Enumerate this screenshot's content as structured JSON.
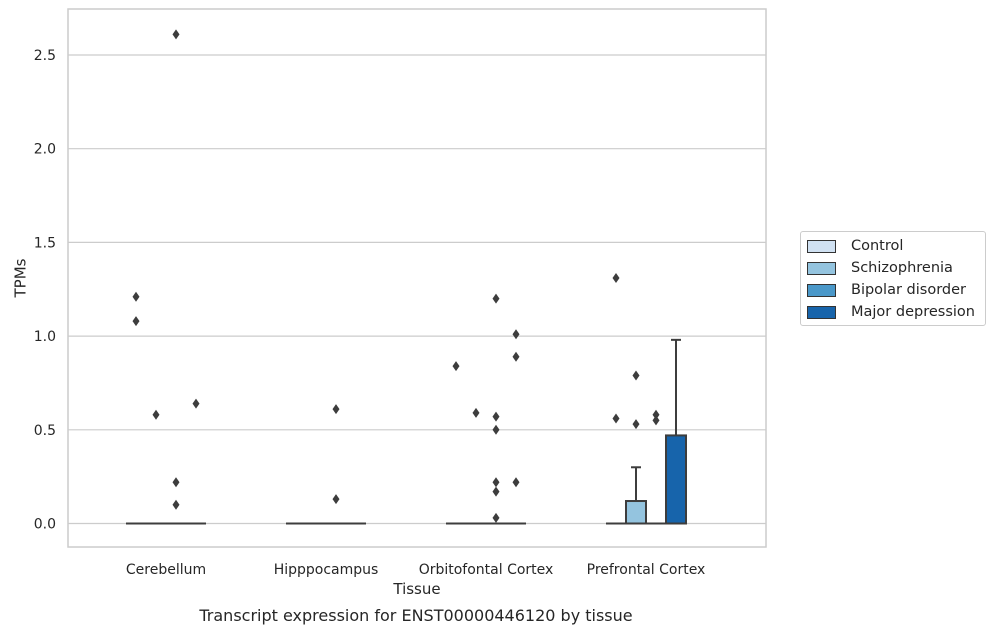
{
  "chart_data": {
    "type": "box",
    "xlabel": "Tissue",
    "ylabel": "TPMs",
    "ylim": [
      -0.12,
      2.7
    ],
    "yticks": [
      "0.0",
      "0.5",
      "1.0",
      "1.5",
      "2.0",
      "2.5"
    ],
    "ytick_values": [
      0.0,
      0.5,
      1.0,
      1.5,
      2.0,
      2.5
    ],
    "categories": [
      "Cerebellum",
      "Hipppocampus",
      "Orbitofontal Cortex",
      "Prefrontal Cortex"
    ],
    "series": [
      {
        "name": "Control",
        "color": "#d0e1f2",
        "boxes": [
          {
            "q1": 0,
            "median": 0,
            "q3": 0,
            "whislo": 0,
            "whishi": 0,
            "fliers": [
              1.21,
              1.08
            ]
          },
          {
            "q1": 0,
            "median": 0,
            "q3": 0,
            "whislo": 0,
            "whishi": 0,
            "fliers": []
          },
          {
            "q1": 0,
            "median": 0,
            "q3": 0,
            "whislo": 0,
            "whishi": 0,
            "fliers": [
              0.84
            ]
          },
          {
            "q1": 0,
            "median": 0,
            "q3": 0,
            "whislo": 0,
            "whishi": 0,
            "fliers": [
              1.31,
              0.56
            ]
          }
        ]
      },
      {
        "name": "Schizophrenia",
        "color": "#94c4df",
        "boxes": [
          {
            "q1": 0,
            "median": 0,
            "q3": 0,
            "whislo": 0,
            "whishi": 0,
            "fliers": [
              0.58
            ]
          },
          {
            "q1": 0,
            "median": 0,
            "q3": 0,
            "whislo": 0,
            "whishi": 0,
            "fliers": []
          },
          {
            "q1": 0,
            "median": 0,
            "q3": 0,
            "whislo": 0,
            "whishi": 0,
            "fliers": [
              0.59
            ]
          },
          {
            "q1": 0,
            "median": 0,
            "q3": 0.12,
            "whislo": 0,
            "whishi": 0.3,
            "fliers": [
              0.79,
              0.53
            ]
          }
        ]
      },
      {
        "name": "Bipolar disorder",
        "color": "#4a98c9",
        "boxes": [
          {
            "q1": 0,
            "median": 0,
            "q3": 0,
            "whislo": 0,
            "whishi": 0,
            "fliers": [
              2.61,
              0.22,
              0.1
            ]
          },
          {
            "q1": 0,
            "median": 0,
            "q3": 0,
            "whislo": 0,
            "whishi": 0,
            "fliers": [
              0.61,
              0.13
            ]
          },
          {
            "q1": 0,
            "median": 0,
            "q3": 0,
            "whislo": 0,
            "whishi": 0,
            "fliers": [
              1.2,
              0.57,
              0.5,
              0.22,
              0.17,
              0.03
            ]
          },
          {
            "q1": 0,
            "median": 0,
            "q3": 0,
            "whislo": 0,
            "whishi": 0,
            "fliers": [
              0.58,
              0.55
            ]
          }
        ]
      },
      {
        "name": "Major depression",
        "color": "#1764ab",
        "boxes": [
          {
            "q1": 0,
            "median": 0,
            "q3": 0,
            "whislo": 0,
            "whishi": 0,
            "fliers": [
              0.64
            ]
          },
          {
            "q1": 0,
            "median": 0,
            "q3": 0,
            "whislo": 0,
            "whishi": 0,
            "fliers": []
          },
          {
            "q1": 0,
            "median": 0,
            "q3": 0,
            "whislo": 0,
            "whishi": 0,
            "fliers": [
              1.01,
              0.89,
              0.22
            ]
          },
          {
            "q1": 0,
            "median": 0,
            "q3": 0.47,
            "whislo": 0,
            "whishi": 0.98,
            "fliers": []
          }
        ]
      }
    ],
    "legend_position": "right",
    "grid": "horizontal",
    "caption": "Transcript expression for ENST00000446120 by tissue"
  },
  "legend_items": [
    "Control",
    "Schizophrenia",
    "Bipolar disorder",
    "Major depression"
  ],
  "caption": "Transcript expression for ENST00000446120 by tissue"
}
